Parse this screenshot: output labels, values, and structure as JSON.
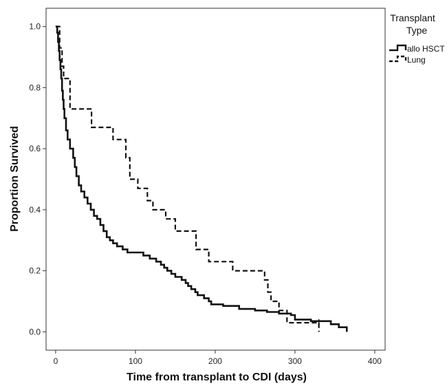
{
  "chart_data": {
    "type": "line",
    "subtype": "kaplan-meier step",
    "xlabel": "Time from transplant to CDI (days)",
    "ylabel": "Proportion Survived",
    "xlim": [
      -12,
      413
    ],
    "ylim": [
      -0.06,
      1.06
    ],
    "xticks": [
      0,
      100,
      200,
      300,
      400
    ],
    "xtick_labels": [
      "0",
      "100",
      "200",
      "300",
      "400"
    ],
    "yticks": [
      0.0,
      0.2,
      0.4,
      0.6,
      0.8,
      1.0
    ],
    "ytick_labels": [
      "0.0",
      "0.2",
      "0.4",
      "0.6",
      "0.8",
      "1.0"
    ],
    "grid": false,
    "legend": {
      "title_line1": "Transplant",
      "title_line2": "Type",
      "placement": "right"
    },
    "series": [
      {
        "name": "allo HSCT",
        "line_style": "solid",
        "points": [
          [
            0,
            1.0
          ],
          [
            2,
            0.98
          ],
          [
            3,
            0.95
          ],
          [
            4,
            0.92
          ],
          [
            5,
            0.89
          ],
          [
            6,
            0.86
          ],
          [
            7,
            0.83
          ],
          [
            8,
            0.79
          ],
          [
            9,
            0.76
          ],
          [
            10,
            0.73
          ],
          [
            11,
            0.7
          ],
          [
            13,
            0.66
          ],
          [
            15,
            0.63
          ],
          [
            18,
            0.6
          ],
          [
            22,
            0.57
          ],
          [
            24,
            0.54
          ],
          [
            26,
            0.51
          ],
          [
            29,
            0.48
          ],
          [
            32,
            0.46
          ],
          [
            36,
            0.44
          ],
          [
            40,
            0.42
          ],
          [
            44,
            0.4
          ],
          [
            48,
            0.38
          ],
          [
            52,
            0.37
          ],
          [
            56,
            0.35
          ],
          [
            60,
            0.33
          ],
          [
            64,
            0.31
          ],
          [
            68,
            0.3
          ],
          [
            72,
            0.29
          ],
          [
            77,
            0.28
          ],
          [
            84,
            0.27
          ],
          [
            90,
            0.26
          ],
          [
            110,
            0.25
          ],
          [
            118,
            0.24
          ],
          [
            126,
            0.23
          ],
          [
            132,
            0.22
          ],
          [
            136,
            0.21
          ],
          [
            140,
            0.2
          ],
          [
            145,
            0.19
          ],
          [
            150,
            0.18
          ],
          [
            158,
            0.17
          ],
          [
            163,
            0.16
          ],
          [
            166,
            0.15
          ],
          [
            170,
            0.14
          ],
          [
            175,
            0.13
          ],
          [
            178,
            0.12
          ],
          [
            186,
            0.11
          ],
          [
            192,
            0.1
          ],
          [
            195,
            0.09
          ],
          [
            210,
            0.085
          ],
          [
            230,
            0.075
          ],
          [
            250,
            0.07
          ],
          [
            265,
            0.065
          ],
          [
            280,
            0.06
          ],
          [
            295,
            0.055
          ],
          [
            300,
            0.04
          ],
          [
            320,
            0.035
          ],
          [
            345,
            0.025
          ],
          [
            355,
            0.015
          ],
          [
            365,
            0.0
          ]
        ],
        "censor_marks": []
      },
      {
        "name": "Lung",
        "line_style": "dashed",
        "points": [
          [
            0,
            1.0
          ],
          [
            5,
            0.93
          ],
          [
            8,
            0.87
          ],
          [
            10,
            0.83
          ],
          [
            18,
            0.73
          ],
          [
            45,
            0.67
          ],
          [
            72,
            0.63
          ],
          [
            88,
            0.57
          ],
          [
            93,
            0.5
          ],
          [
            103,
            0.47
          ],
          [
            115,
            0.43
          ],
          [
            122,
            0.4
          ],
          [
            138,
            0.37
          ],
          [
            150,
            0.33
          ],
          [
            176,
            0.27
          ],
          [
            192,
            0.23
          ],
          [
            222,
            0.2
          ],
          [
            262,
            0.17
          ],
          [
            266,
            0.13
          ],
          [
            270,
            0.1
          ],
          [
            280,
            0.07
          ],
          [
            290,
            0.03
          ],
          [
            330,
            0.0
          ]
        ],
        "censor_marks": [
          [
            330,
            0.03
          ]
        ]
      }
    ]
  }
}
